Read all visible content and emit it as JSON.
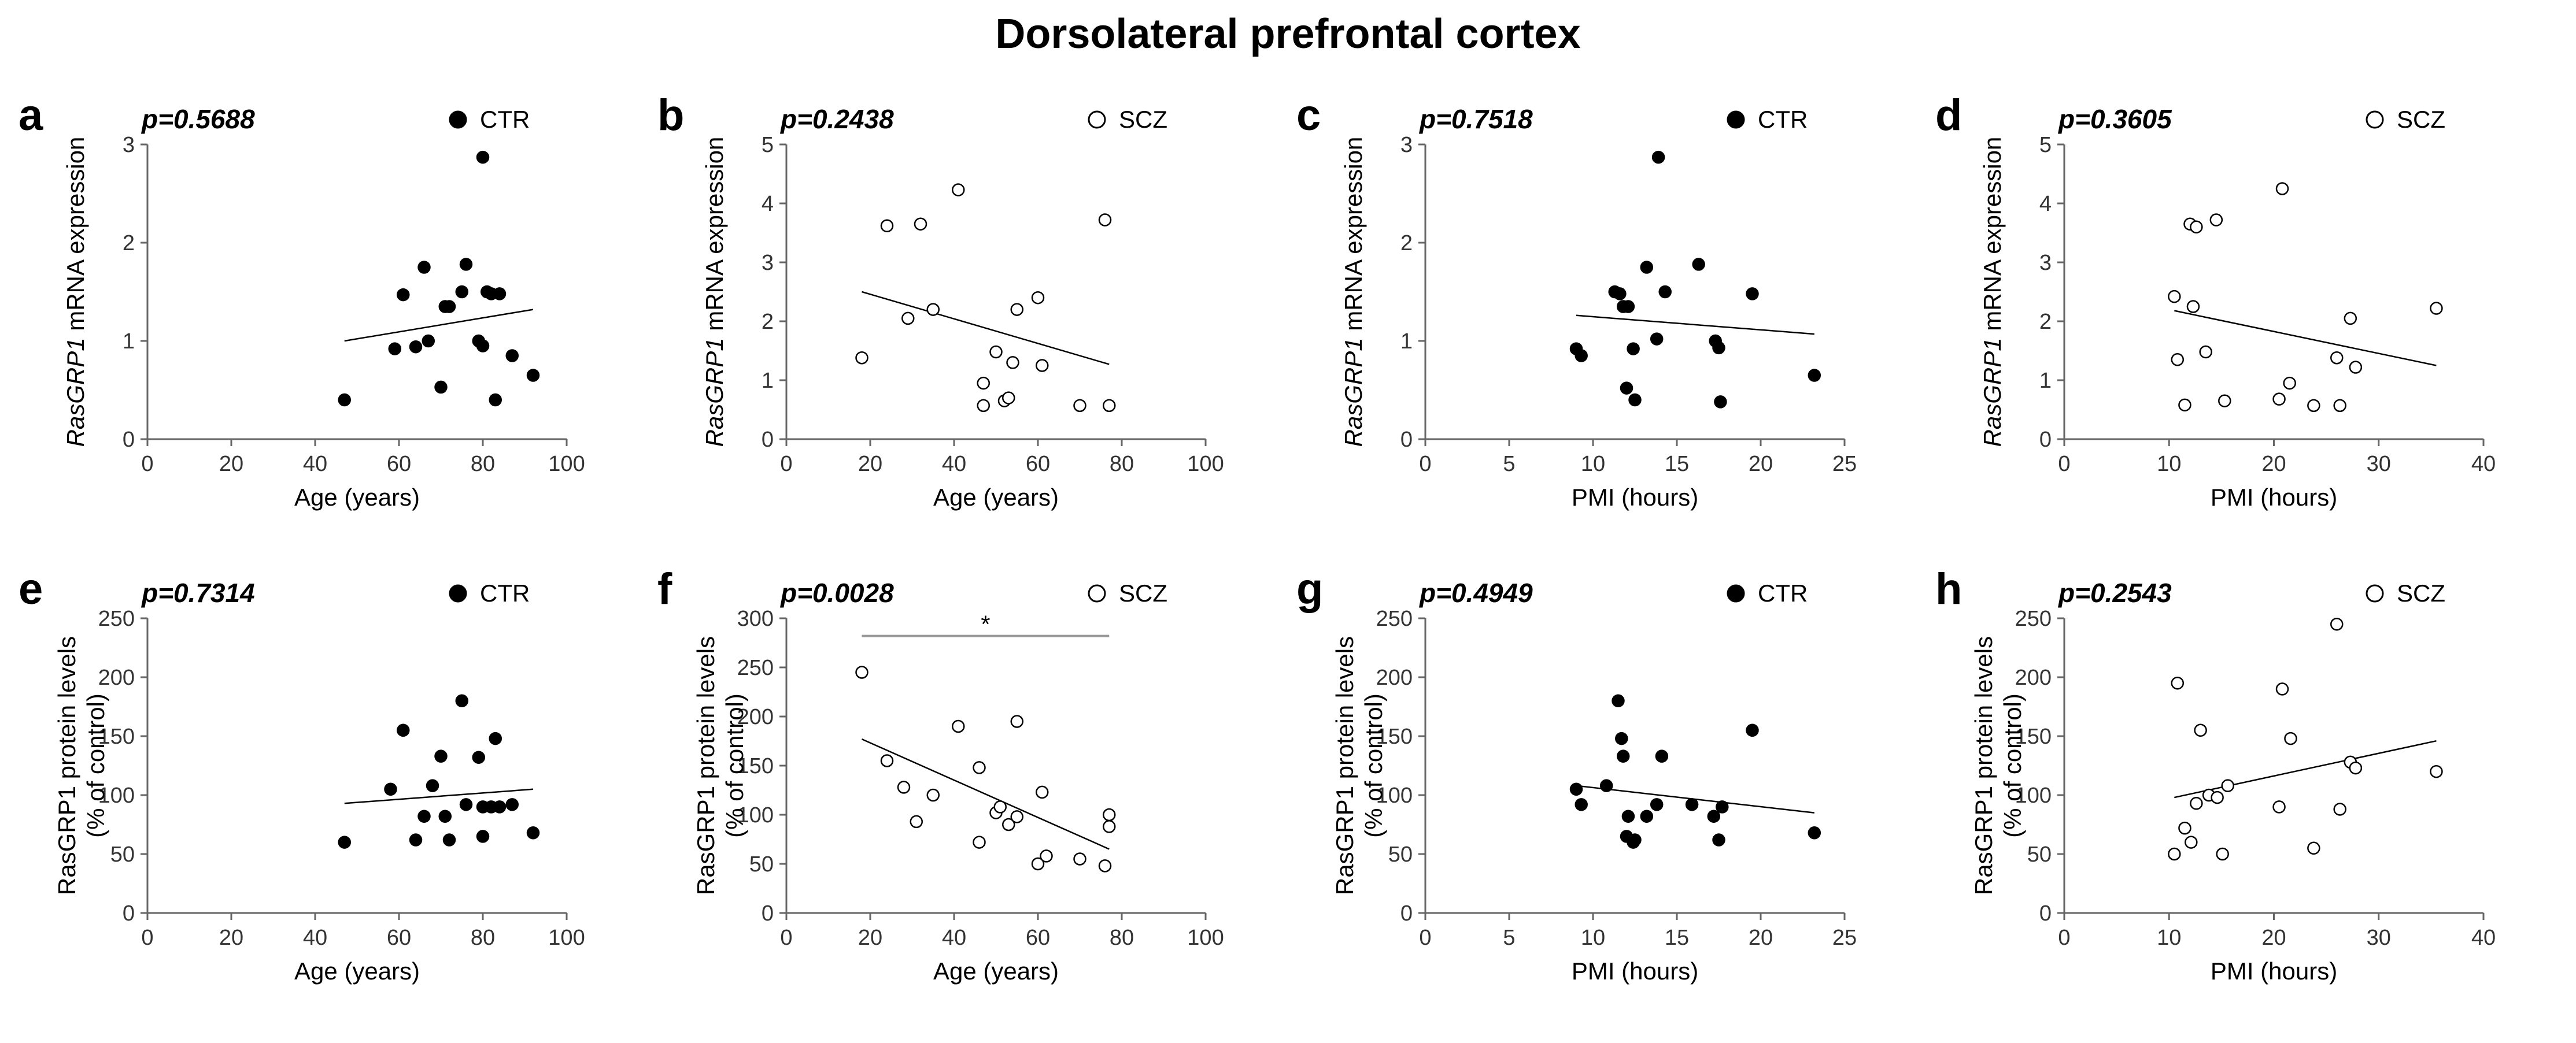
{
  "title": "Dorsolateral prefrontal cortex",
  "chart_data": [
    {
      "id": "a",
      "type": "scatter",
      "letter": "a",
      "p_value": "p=0.5688",
      "legend": "CTR",
      "marker": "filled",
      "ylabel_italic": "RasGRP1",
      "ylabel_rest": " mRNA expression",
      "ylabel_line2": "",
      "xlabel": "Age (years)",
      "xlim": [
        0,
        100
      ],
      "ylim": [
        0,
        3
      ],
      "xticks": [
        0,
        20,
        40,
        60,
        80,
        100
      ],
      "yticks": [
        0,
        1,
        2,
        3
      ],
      "x": [
        47,
        59,
        61,
        64,
        66,
        67,
        70,
        71,
        72,
        75,
        76,
        79,
        80,
        80,
        81,
        82,
        83,
        84,
        87,
        92
      ],
      "y": [
        0.4,
        0.92,
        1.47,
        0.94,
        1.75,
        1.0,
        0.53,
        1.35,
        1.35,
        1.5,
        1.78,
        1.0,
        2.87,
        0.95,
        1.5,
        1.48,
        0.4,
        1.48,
        0.85,
        0.65
      ],
      "trend": [
        [
          47,
          1.0
        ],
        [
          92,
          1.32
        ]
      ],
      "bar": null
    },
    {
      "id": "b",
      "type": "scatter",
      "letter": "b",
      "p_value": "p=0.2438",
      "legend": "SCZ",
      "marker": "open",
      "ylabel_italic": "RasGRP1",
      "ylabel_rest": " mRNA expression",
      "ylabel_line2": "",
      "xlabel": "Age (years)",
      "xlim": [
        0,
        100
      ],
      "ylim": [
        0,
        5
      ],
      "xticks": [
        0,
        20,
        40,
        60,
        80,
        100
      ],
      "yticks": [
        0,
        1,
        2,
        3,
        4,
        5
      ],
      "x": [
        18,
        24,
        29,
        32,
        35,
        41,
        47,
        47,
        50,
        52,
        53,
        54,
        55,
        60,
        61,
        70,
        76,
        77
      ],
      "y": [
        1.38,
        3.62,
        2.05,
        3.65,
        2.2,
        4.23,
        0.95,
        0.57,
        1.48,
        0.65,
        0.7,
        1.3,
        2.2,
        2.4,
        1.25,
        0.57,
        3.72,
        0.57
      ],
      "trend": [
        [
          18,
          2.5
        ],
        [
          77,
          1.27
        ]
      ],
      "bar": null
    },
    {
      "id": "c",
      "type": "scatter",
      "letter": "c",
      "p_value": "p=0.7518",
      "legend": "CTR",
      "marker": "filled",
      "ylabel_italic": "RasGRP1",
      "ylabel_rest": " mRNA expression",
      "ylabel_line2": "",
      "xlabel": "PMI (hours)",
      "xlim": [
        0,
        25
      ],
      "ylim": [
        0,
        3
      ],
      "xticks": [
        0,
        5,
        10,
        15,
        20,
        25
      ],
      "yticks": [
        0,
        1,
        2,
        3
      ],
      "x": [
        9,
        9.3,
        11.3,
        11.6,
        11.8,
        12,
        12.1,
        12.4,
        12.5,
        13.2,
        13.8,
        13.9,
        14.3,
        16.3,
        17.3,
        17.5,
        17.6,
        19.5,
        23.2
      ],
      "y": [
        0.92,
        0.85,
        1.5,
        1.48,
        1.35,
        0.52,
        1.35,
        0.92,
        0.4,
        1.75,
        1.02,
        2.87,
        1.5,
        1.78,
        1.0,
        0.93,
        0.38,
        1.48,
        0.65
      ],
      "trend": [
        [
          9,
          1.26
        ],
        [
          23.2,
          1.07
        ]
      ],
      "bar": null
    },
    {
      "id": "d",
      "type": "scatter",
      "letter": "d",
      "p_value": "p=0.3605",
      "legend": "SCZ",
      "marker": "open",
      "ylabel_italic": "RasGRP1",
      "ylabel_rest": " mRNA expression",
      "ylabel_line2": "",
      "xlabel": "PMI (hours)",
      "xlim": [
        0,
        40
      ],
      "ylim": [
        0,
        5
      ],
      "xticks": [
        0,
        10,
        20,
        30,
        40
      ],
      "yticks": [
        0,
        1,
        2,
        3,
        4,
        5
      ],
      "x": [
        10.5,
        10.8,
        11.5,
        12,
        12.3,
        12.6,
        13.5,
        14.5,
        15.3,
        20.5,
        20.8,
        21.5,
        23.8,
        26,
        26.3,
        27.3,
        27.8,
        35.5
      ],
      "y": [
        2.42,
        1.35,
        0.58,
        3.65,
        2.25,
        3.6,
        1.48,
        3.72,
        0.65,
        0.68,
        4.25,
        0.95,
        0.57,
        1.38,
        0.57,
        2.05,
        1.22,
        2.22
      ],
      "trend": [
        [
          10.5,
          2.18
        ],
        [
          35.5,
          1.25
        ]
      ],
      "bar": null
    },
    {
      "id": "e",
      "type": "scatter",
      "letter": "e",
      "p_value": "p=0.7314",
      "legend": "CTR",
      "marker": "filled",
      "ylabel_italic": "",
      "ylabel_rest": "RasGRP1 protein levels",
      "ylabel_line2": "(% of control)",
      "xlabel": "Age (years)",
      "xlim": [
        0,
        100
      ],
      "ylim": [
        0,
        250
      ],
      "xticks": [
        0,
        20,
        40,
        60,
        80,
        100
      ],
      "yticks": [
        0,
        50,
        100,
        150,
        200,
        250
      ],
      "x": [
        47,
        58,
        61,
        64,
        66,
        68,
        70,
        71,
        72,
        75,
        76,
        79,
        80,
        80,
        82,
        83,
        84,
        87,
        92
      ],
      "y": [
        60,
        105,
        155,
        62,
        82,
        108,
        133,
        82,
        62,
        180,
        92,
        132,
        90,
        65,
        90,
        148,
        90,
        92,
        68
      ],
      "trend": [
        [
          47,
          93
        ],
        [
          92,
          105
        ]
      ],
      "bar": null
    },
    {
      "id": "f",
      "type": "scatter",
      "letter": "f",
      "p_value": "p=0.0028",
      "legend": "SCZ",
      "marker": "open",
      "ylabel_italic": "",
      "ylabel_rest": "RasGRP1 protein levels",
      "ylabel_line2": "(% of control)",
      "xlabel": "Age (years)",
      "xlim": [
        0,
        100
      ],
      "ylim": [
        0,
        300
      ],
      "xticks": [
        0,
        20,
        40,
        60,
        80,
        100
      ],
      "yticks": [
        0,
        50,
        100,
        150,
        200,
        250,
        300
      ],
      "x": [
        18,
        24,
        28,
        31,
        35,
        41,
        46,
        46,
        50,
        51,
        53,
        55,
        55,
        60,
        61,
        62,
        70,
        76,
        77,
        77
      ],
      "y": [
        245,
        155,
        128,
        93,
        120,
        190,
        148,
        72,
        102,
        108,
        90,
        195,
        98,
        50,
        123,
        58,
        55,
        48,
        100,
        88
      ],
      "trend": [
        [
          18,
          177
        ],
        [
          77,
          65
        ]
      ],
      "bar": {
        "x_from": 18,
        "x_to": 77,
        "y": 282,
        "label": "*"
      }
    },
    {
      "id": "g",
      "type": "scatter",
      "letter": "g",
      "p_value": "p=0.4949",
      "legend": "CTR",
      "marker": "filled",
      "ylabel_italic": "",
      "ylabel_rest": "RasGRP1 protein levels",
      "ylabel_line2": "(% of control)",
      "xlabel": "PMI (hours)",
      "xlim": [
        0,
        25
      ],
      "ylim": [
        0,
        250
      ],
      "xticks": [
        0,
        5,
        10,
        15,
        20,
        25
      ],
      "yticks": [
        0,
        50,
        100,
        150,
        200,
        250
      ],
      "x": [
        9,
        9.3,
        10.8,
        11.5,
        11.7,
        11.8,
        12,
        12.1,
        12.4,
        12.5,
        13.2,
        13.8,
        14.1,
        15.9,
        17.2,
        17.5,
        17.7,
        19.5,
        23.2
      ],
      "y": [
        105,
        92,
        108,
        180,
        148,
        133,
        65,
        82,
        60,
        62,
        82,
        92,
        133,
        92,
        82,
        62,
        90,
        155,
        68
      ],
      "trend": [
        [
          9,
          108
        ],
        [
          23.2,
          85
        ]
      ],
      "bar": null
    },
    {
      "id": "h",
      "type": "scatter",
      "letter": "h",
      "p_value": "p=0.2543",
      "legend": "SCZ",
      "marker": "open",
      "ylabel_italic": "",
      "ylabel_rest": "RasGRP1 protein levels",
      "ylabel_line2": "(% of control)",
      "xlabel": "PMI (hours)",
      "xlim": [
        0,
        40
      ],
      "ylim": [
        0,
        250
      ],
      "xticks": [
        0,
        10,
        20,
        30,
        40
      ],
      "yticks": [
        0,
        50,
        100,
        150,
        200,
        250
      ],
      "x": [
        10.5,
        10.8,
        11.5,
        12.1,
        12.6,
        13,
        13.8,
        14.6,
        15.1,
        15.6,
        20.5,
        20.8,
        21.6,
        23.8,
        26,
        26.3,
        27.3,
        27.8,
        35.5
      ],
      "y": [
        50,
        195,
        72,
        60,
        93,
        155,
        100,
        98,
        50,
        108,
        90,
        190,
        148,
        55,
        245,
        88,
        128,
        123,
        120
      ],
      "trend": [
        [
          10.5,
          98
        ],
        [
          35.5,
          146
        ]
      ],
      "bar": null
    }
  ]
}
